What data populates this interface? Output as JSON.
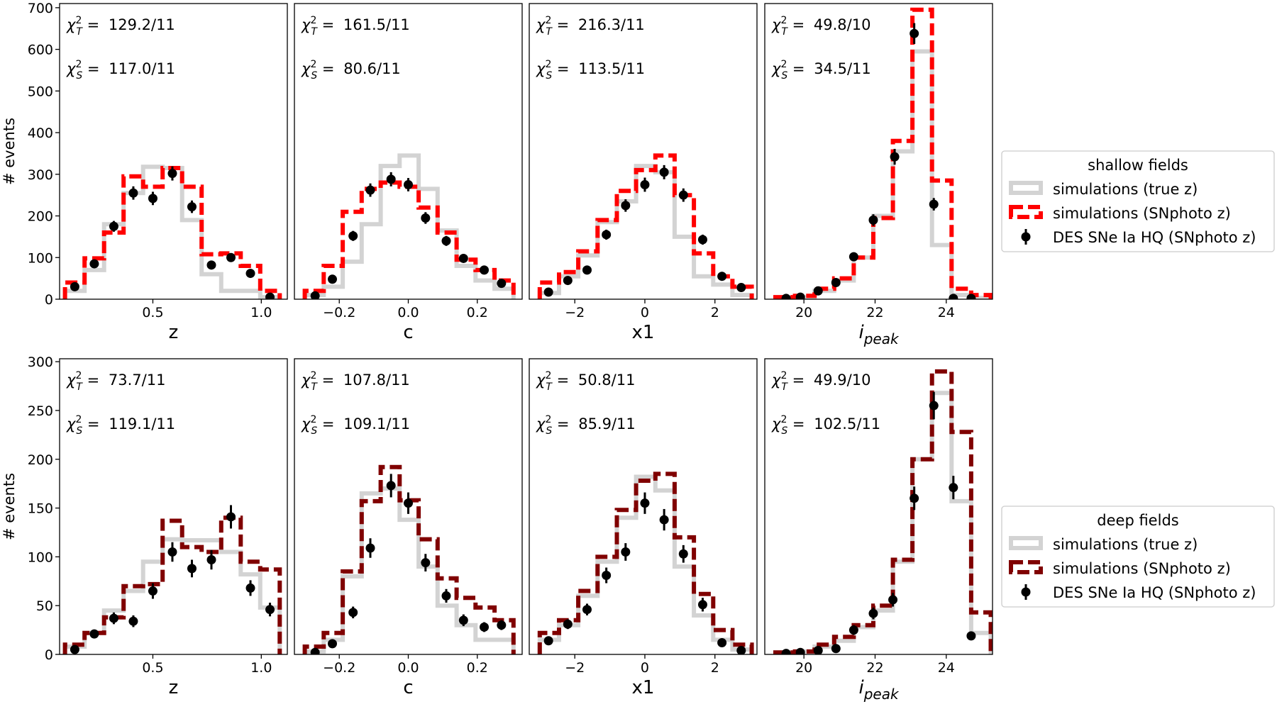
{
  "legends": [
    {
      "title": "shallow fields",
      "entries": [
        "simulations (true z)",
        "simulations (SNphoto z)",
        "DES SNe Ia HQ (SNphoto z)"
      ]
    },
    {
      "title": "deep fields",
      "entries": [
        "simulations (true z)",
        "simulations (SNphoto z)",
        "DES SNe Ia HQ (SNphoto z)"
      ]
    }
  ],
  "colors": {
    "true_z": "#d3d3d3",
    "snphoto_shallow": "#ff0000",
    "snphoto_deep": "#800000",
    "data": "#000000"
  },
  "chart_data": [
    {
      "type": "histogram",
      "row": "shallow fields",
      "xlabel": "z",
      "ylabel": "# events",
      "xlim": [
        0.07,
        1.12
      ],
      "ylim": [
        0,
        710
      ],
      "xticks": [
        0.5,
        1.0
      ],
      "xtick_labels": [
        "0.5",
        "1.0"
      ],
      "yticks": [
        0,
        100,
        200,
        300,
        400,
        500,
        600,
        700
      ],
      "ytick_labels": [
        "0",
        "100",
        "200",
        "300",
        "400",
        "500",
        "600",
        "700"
      ],
      "chi2_T": "129.2/11",
      "chi2_S": "117.0/11",
      "edges": [
        0.095,
        0.185,
        0.275,
        0.365,
        0.455,
        0.545,
        0.635,
        0.725,
        0.815,
        0.905,
        0.995,
        1.085
      ],
      "series": [
        {
          "name": "simulations (true z)",
          "values": [
            20,
            70,
            180,
            255,
            318,
            315,
            190,
            60,
            20,
            20,
            5
          ]
        },
        {
          "name": "simulations (SNphoto z)",
          "values": [
            40,
            98,
            160,
            295,
            270,
            315,
            270,
            108,
            110,
            80,
            20
          ]
        },
        {
          "name": "DES SNe Ia HQ (SNphoto z)",
          "x": [
            0.14,
            0.23,
            0.32,
            0.41,
            0.5,
            0.59,
            0.68,
            0.77,
            0.86,
            0.95,
            1.04
          ],
          "y": [
            30,
            85,
            175,
            255,
            242,
            302,
            222,
            82,
            100,
            62,
            5
          ],
          "err": [
            6,
            9,
            13,
            16,
            16,
            17,
            15,
            9,
            10,
            8,
            3
          ]
        }
      ]
    },
    {
      "type": "histogram",
      "row": "shallow fields",
      "xlabel": "c",
      "ylabel": "",
      "xlim": [
        -0.33,
        0.33
      ],
      "ylim": [
        0,
        710
      ],
      "xticks": [
        -0.2,
        0.0,
        0.2
      ],
      "xtick_labels": [
        "−0.2",
        "0.0",
        "0.2"
      ],
      "yticks": [],
      "ytick_labels": [],
      "chi2_T": "161.5/11",
      "chi2_S": "80.6/11",
      "edges": [
        -0.3,
        -0.245,
        -0.19,
        -0.135,
        -0.08,
        -0.025,
        0.03,
        0.085,
        0.14,
        0.195,
        0.25,
        0.305
      ],
      "series": [
        {
          "name": "simulations (true z)",
          "values": [
            10,
            30,
            90,
            180,
            320,
            345,
            265,
            165,
            80,
            45,
            25
          ]
        },
        {
          "name": "simulations (SNphoto z)",
          "values": [
            20,
            80,
            210,
            265,
            280,
            270,
            220,
            160,
            95,
            70,
            45
          ]
        },
        {
          "name": "DES SNe Ia HQ (SNphoto z)",
          "x": [
            -0.27,
            -0.22,
            -0.16,
            -0.11,
            -0.05,
            0.0,
            0.05,
            0.11,
            0.16,
            0.22,
            0.27
          ],
          "y": [
            8,
            48,
            152,
            262,
            288,
            275,
            195,
            140,
            98,
            70,
            38
          ],
          "err": [
            3,
            7,
            12,
            16,
            17,
            16,
            14,
            12,
            10,
            8,
            6
          ]
        }
      ]
    },
    {
      "type": "histogram",
      "row": "shallow fields",
      "xlabel": "x1",
      "ylabel": "",
      "xlim": [
        -3.3,
        3.2
      ],
      "ylim": [
        0,
        710
      ],
      "xticks": [
        -2,
        0,
        2
      ],
      "xtick_labels": [
        "−2",
        "0",
        "2"
      ],
      "yticks": [],
      "ytick_labels": [],
      "chi2_T": "216.3/11",
      "chi2_S": "113.5/11",
      "edges": [
        -3.0,
        -2.45,
        -1.9,
        -1.35,
        -0.8,
        -0.25,
        0.3,
        0.85,
        1.4,
        1.95,
        2.5,
        3.05
      ],
      "series": [
        {
          "name": "simulations (true z)",
          "values": [
            15,
            55,
            105,
            185,
            235,
            320,
            305,
            150,
            55,
            35,
            10
          ]
        },
        {
          "name": "simulations (SNphoto z)",
          "values": [
            40,
            65,
            115,
            190,
            260,
            310,
            345,
            250,
            110,
            55,
            30
          ]
        },
        {
          "name": "DES SNe Ia HQ (SNphoto z)",
          "x": [
            -2.75,
            -2.2,
            -1.65,
            -1.1,
            -0.55,
            0.0,
            0.55,
            1.1,
            1.65,
            2.2,
            2.75
          ],
          "y": [
            17,
            45,
            70,
            155,
            225,
            275,
            305,
            250,
            143,
            55,
            28
          ],
          "err": [
            4,
            7,
            8,
            12,
            15,
            17,
            17,
            16,
            12,
            7,
            5
          ]
        }
      ]
    },
    {
      "type": "histogram",
      "row": "shallow fields",
      "xlabel": "i_peak",
      "ylabel": "",
      "xlim": [
        18.9,
        25.3
      ],
      "ylim": [
        0,
        710
      ],
      "xticks": [
        20,
        22,
        24
      ],
      "xtick_labels": [
        "20",
        "22",
        "24"
      ],
      "yticks": [],
      "ytick_labels": [],
      "chi2_T": "49.8/10",
      "chi2_S": "34.5/11",
      "edges": [
        19.2,
        19.75,
        20.3,
        20.85,
        21.4,
        21.95,
        22.5,
        23.05,
        23.6,
        24.15,
        24.7,
        25.25
      ],
      "series": [
        {
          "name": "simulations (true z)",
          "values": [
            3,
            5,
            20,
            45,
            100,
            200,
            355,
            595,
            130,
            10,
            3
          ]
        },
        {
          "name": "simulations (SNphoto z)",
          "values": [
            5,
            8,
            25,
            50,
            100,
            195,
            380,
            695,
            285,
            25,
            10
          ]
        },
        {
          "name": "DES SNe Ia HQ (SNphoto z)",
          "x": [
            19.5,
            19.9,
            20.4,
            20.9,
            21.4,
            21.95,
            22.55,
            23.1,
            23.65,
            24.2,
            24.7
          ],
          "y": [
            2,
            5,
            20,
            40,
            102,
            190,
            342,
            638,
            228,
            2,
            2
          ],
          "err": [
            1,
            2,
            4,
            6,
            10,
            14,
            19,
            25,
            15,
            1,
            1
          ]
        }
      ]
    },
    {
      "type": "histogram",
      "row": "deep fields",
      "xlabel": "z",
      "ylabel": "# events",
      "xlim": [
        0.07,
        1.12
      ],
      "ylim": [
        0,
        303
      ],
      "xticks": [
        0.5,
        1.0
      ],
      "xtick_labels": [
        "0.5",
        "1.0"
      ],
      "yticks": [
        0,
        50,
        100,
        150,
        200,
        250,
        300
      ],
      "ytick_labels": [
        "0",
        "50",
        "100",
        "150",
        "200",
        "250",
        "300"
      ],
      "chi2_T": "73.7/11",
      "chi2_S": "119.1/11",
      "edges": [
        0.095,
        0.185,
        0.275,
        0.365,
        0.455,
        0.545,
        0.635,
        0.725,
        0.815,
        0.905,
        0.995,
        1.085
      ],
      "series": [
        {
          "name": "simulations (true z)",
          "values": [
            8,
            22,
            45,
            65,
            95,
            118,
            117,
            117,
            105,
            82,
            48
          ]
        },
        {
          "name": "simulations (SNphoto z)",
          "values": [
            10,
            22,
            38,
            70,
            72,
            137,
            110,
            105,
            140,
            95,
            87
          ]
        },
        {
          "name": "DES SNe Ia HQ (SNphoto z)",
          "x": [
            0.14,
            0.23,
            0.32,
            0.41,
            0.5,
            0.59,
            0.68,
            0.77,
            0.86,
            0.95,
            1.04
          ],
          "y": [
            5,
            21,
            37,
            34,
            65,
            105,
            88,
            97,
            141,
            68,
            46
          ],
          "err": [
            2,
            4,
            6,
            6,
            8,
            10,
            9,
            10,
            12,
            8,
            7
          ]
        }
      ]
    },
    {
      "type": "histogram",
      "row": "deep fields",
      "xlabel": "c",
      "ylabel": "",
      "xlim": [
        -0.33,
        0.33
      ],
      "ylim": [
        0,
        303
      ],
      "xticks": [
        -0.2,
        0.0,
        0.2
      ],
      "xtick_labels": [
        "−0.2",
        "0.0",
        "0.2"
      ],
      "yticks": [],
      "ytick_labels": [],
      "chi2_T": "107.8/11",
      "chi2_S": "109.1/11",
      "edges": [
        -0.3,
        -0.245,
        -0.19,
        -0.135,
        -0.08,
        -0.025,
        0.03,
        0.085,
        0.14,
        0.195,
        0.25,
        0.305
      ],
      "series": [
        {
          "name": "simulations (true z)",
          "values": [
            3,
            15,
            80,
            165,
            170,
            138,
            90,
            50,
            30,
            15,
            15
          ]
        },
        {
          "name": "simulations (SNphoto z)",
          "values": [
            8,
            22,
            85,
            157,
            192,
            158,
            118,
            78,
            58,
            48,
            35
          ]
        },
        {
          "name": "DES SNe Ia HQ (SNphoto z)",
          "x": [
            -0.27,
            -0.22,
            -0.16,
            -0.11,
            -0.05,
            0.0,
            0.05,
            0.11,
            0.16,
            0.22,
            0.27
          ],
          "y": [
            2,
            11,
            43,
            109,
            173,
            155,
            94,
            60,
            35,
            28,
            30
          ],
          "err": [
            1,
            3,
            6,
            10,
            12,
            11,
            9,
            7,
            6,
            5,
            5
          ]
        }
      ]
    },
    {
      "type": "histogram",
      "row": "deep fields",
      "xlabel": "x1",
      "ylabel": "",
      "xlim": [
        -3.3,
        3.2
      ],
      "ylim": [
        0,
        303
      ],
      "xticks": [
        -2,
        0,
        2
      ],
      "xtick_labels": [
        "−2",
        "0",
        "2"
      ],
      "yticks": [],
      "ytick_labels": [],
      "chi2_T": "50.8/11",
      "chi2_S": "85.9/11",
      "edges": [
        -3.0,
        -2.45,
        -1.9,
        -1.35,
        -0.8,
        -0.25,
        0.3,
        0.85,
        1.4,
        1.95,
        2.5,
        3.05
      ],
      "series": [
        {
          "name": "simulations (true z)",
          "values": [
            15,
            30,
            60,
            95,
            140,
            182,
            168,
            90,
            40,
            15,
            5
          ]
        },
        {
          "name": "simulations (SNphoto z)",
          "values": [
            22,
            35,
            65,
            100,
            148,
            178,
            185,
            120,
            62,
            25,
            10
          ]
        },
        {
          "name": "DES SNe Ia HQ (SNphoto z)",
          "x": [
            -2.75,
            -2.2,
            -1.65,
            -1.1,
            -0.55,
            0.0,
            0.55,
            1.1,
            1.65,
            2.2,
            2.75
          ],
          "y": [
            14,
            31,
            46,
            81,
            105,
            155,
            138,
            103,
            51,
            12,
            4
          ],
          "err": [
            3,
            5,
            6,
            8,
            9,
            11,
            11,
            9,
            7,
            3,
            2
          ]
        }
      ]
    },
    {
      "type": "histogram",
      "row": "deep fields",
      "xlabel": "i_peak",
      "ylabel": "",
      "xlim": [
        18.9,
        25.3
      ],
      "ylim": [
        0,
        303
      ],
      "xticks": [
        20,
        22,
        24
      ],
      "xtick_labels": [
        "20",
        "22",
        "24"
      ],
      "yticks": [],
      "ytick_labels": [],
      "chi2_T": "49.9/10",
      "chi2_S": "102.5/11",
      "edges": [
        19.2,
        19.75,
        20.3,
        20.85,
        21.4,
        21.95,
        22.5,
        23.05,
        23.6,
        24.15,
        24.7,
        25.25
      ],
      "series": [
        {
          "name": "simulations (true z)",
          "values": [
            2,
            3,
            8,
            14,
            28,
            45,
            95,
            200,
            268,
            157,
            22
          ]
        },
        {
          "name": "simulations (SNphoto z)",
          "values": [
            2,
            3,
            10,
            18,
            30,
            50,
            97,
            200,
            290,
            228,
            43
          ]
        },
        {
          "name": "DES SNe Ia HQ (SNphoto z)",
          "x": [
            19.5,
            19.9,
            20.4,
            20.9,
            21.4,
            21.95,
            22.5,
            23.1,
            23.65,
            24.2,
            24.7
          ],
          "y": [
            1,
            2,
            4,
            6,
            25,
            42,
            56,
            160,
            255,
            171,
            19
          ],
          "err": [
            1,
            1,
            2,
            3,
            5,
            6,
            7,
            12,
            14,
            12,
            4
          ]
        }
      ]
    }
  ]
}
